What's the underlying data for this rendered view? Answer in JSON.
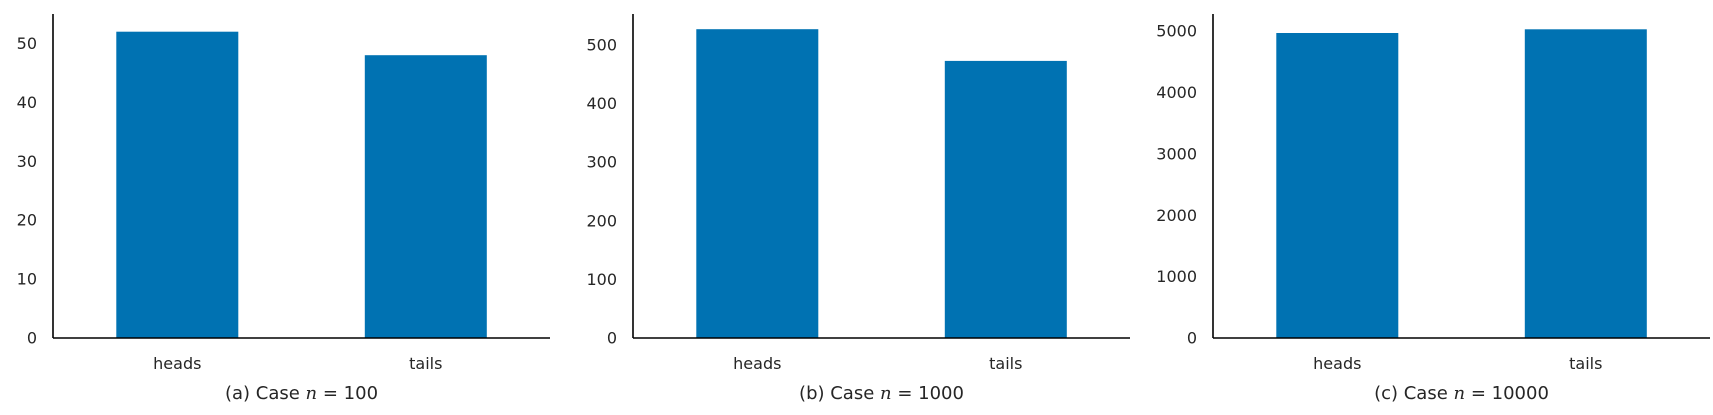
{
  "chart_data": [
    {
      "type": "bar",
      "caption": "(a) Case n = 100",
      "caption_parts": {
        "prefix": "(a) Case ",
        "var": "n",
        "suffix": " = 100"
      },
      "categories": [
        "heads",
        "tails"
      ],
      "values": [
        52,
        48
      ],
      "ylim": [
        0,
        55
      ],
      "yticks": [
        0,
        10,
        20,
        30,
        40,
        50
      ],
      "xlabel": "",
      "ylabel": "",
      "grid": false,
      "color": "#0072b2"
    },
    {
      "type": "bar",
      "caption": "(b) Case n = 1000",
      "caption_parts": {
        "prefix": "(b) Case ",
        "var": "n",
        "suffix": " = 1000"
      },
      "categories": [
        "heads",
        "tails"
      ],
      "values": [
        527,
        473
      ],
      "ylim": [
        0,
        553
      ],
      "yticks": [
        0,
        100,
        200,
        300,
        400,
        500
      ],
      "xlabel": "",
      "ylabel": "",
      "grid": false,
      "color": "#0072b2"
    },
    {
      "type": "bar",
      "caption": "(c) Case n = 10000",
      "caption_parts": {
        "prefix": "(c) Case ",
        "var": "n",
        "suffix": " = 10000"
      },
      "categories": [
        "heads",
        "tails"
      ],
      "values": [
        4970,
        5030
      ],
      "ylim": [
        0,
        5280
      ],
      "yticks": [
        0,
        1000,
        2000,
        3000,
        4000,
        5000
      ],
      "xlabel": "",
      "ylabel": "",
      "grid": false,
      "color": "#0072b2"
    }
  ]
}
